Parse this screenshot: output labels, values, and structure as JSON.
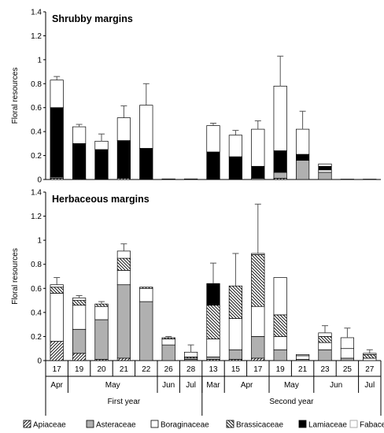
{
  "chart_data": {
    "type": "bar",
    "stacked": true,
    "ylabel": "Floral resources",
    "ylim": [
      0,
      1.4
    ],
    "yticks": [
      0,
      0.2,
      0.4,
      0.6,
      0.8,
      1,
      1.2,
      1.4
    ],
    "series_names": [
      "Apiaceae",
      "Asteraceae",
      "Boraginaceae",
      "Brassicaceae",
      "Lamiaceae",
      "Fabaceae"
    ],
    "colors": {
      "Apiaceae": "#ffffff",
      "Asteraceae": "#b0b0b0",
      "Boraginaceae": "#ffffff",
      "Brassicaceae": "#ffffff",
      "Lamiaceae": "#000000",
      "Fabaceae": "#ffffff"
    },
    "legend": {
      "position": "bottom",
      "entries": [
        {
          "label": "Apiaceae",
          "pattern": "diag-up"
        },
        {
          "label": "Asteraceae",
          "pattern": "gray"
        },
        {
          "label": "Boraginaceae",
          "pattern": "white"
        },
        {
          "label": "Brassicaceae",
          "pattern": "diag-down"
        },
        {
          "label": "Lamiaceae",
          "pattern": "black"
        },
        {
          "label": "Fabaceae",
          "pattern": "white-light"
        }
      ]
    },
    "x_days": [
      "17",
      "19",
      "20",
      "21",
      "22",
      "26",
      "28",
      "13",
      "15",
      "17",
      "19",
      "21",
      "23",
      "25",
      "27"
    ],
    "x_months": [
      {
        "label": "Apr",
        "from": 0,
        "to": 0
      },
      {
        "label": "May",
        "from": 1,
        "to": 4
      },
      {
        "label": "Jun",
        "from": 5,
        "to": 5
      },
      {
        "label": "Jul",
        "from": 6,
        "to": 6
      },
      {
        "label": "Mar",
        "from": 7,
        "to": 7
      },
      {
        "label": "Apr",
        "from": 8,
        "to": 9
      },
      {
        "label": "May",
        "from": 10,
        "to": 11
      },
      {
        "label": "Jun",
        "from": 12,
        "to": 13
      },
      {
        "label": "Jul",
        "from": 14,
        "to": 14
      }
    ],
    "x_years": [
      {
        "label": "First year",
        "from": 0,
        "to": 6
      },
      {
        "label": "Second year",
        "from": 7,
        "to": 14
      }
    ],
    "panels": [
      {
        "title": "Shrubby margins",
        "series": [
          {
            "name": "Apiaceae",
            "values": [
              0.01,
              0.005,
              0,
              0.01,
              0,
              0,
              0,
              0,
              0,
              0,
              0.01,
              0,
              0,
              0,
              0
            ]
          },
          {
            "name": "Asteraceae",
            "values": [
              0.01,
              0.005,
              0,
              0.005,
              0,
              0,
              0,
              0,
              0,
              0.01,
              0.05,
              0.16,
              0.06,
              0,
              0
            ]
          },
          {
            "name": "Boraginaceae",
            "values": [
              0,
              0,
              0,
              0,
              0,
              0,
              0,
              0,
              0,
              0,
              0,
              0,
              0.02,
              0,
              0
            ]
          },
          {
            "name": "Brassicaceae",
            "values": [
              0,
              0,
              0,
              0,
              0,
              0,
              0,
              0,
              0,
              0,
              0,
              0,
              0,
              0,
              0
            ]
          },
          {
            "name": "Lamiaceae",
            "values": [
              0.58,
              0.29,
              0.25,
              0.31,
              0.26,
              0,
              0,
              0.23,
              0.19,
              0.1,
              0.18,
              0.05,
              0.03,
              0,
              0
            ]
          },
          {
            "name": "Fabaceae",
            "values": [
              0.23,
              0.14,
              0.07,
              0.19,
              0.36,
              0.005,
              0.005,
              0.22,
              0.18,
              0.31,
              0.54,
              0.21,
              0.02,
              0.003,
              0.003
            ]
          }
        ],
        "errors": [
          0.03,
          0.02,
          0.06,
          0.1,
          0.18,
          0,
          0,
          0.02,
          0.04,
          0.07,
          0.25,
          0.15,
          0,
          0,
          0
        ]
      },
      {
        "title": "Herbaceous margins",
        "series": [
          {
            "name": "Apiaceae",
            "values": [
              0.16,
              0.06,
              0.01,
              0.02,
              0,
              0,
              0,
              0.01,
              0.01,
              0.02,
              0,
              0,
              0,
              0,
              0
            ]
          },
          {
            "name": "Asteraceae",
            "values": [
              0,
              0.2,
              0.33,
              0.61,
              0.49,
              0.13,
              0.01,
              0.02,
              0.08,
              0.18,
              0.09,
              0.01,
              0.09,
              0.02,
              0
            ]
          },
          {
            "name": "Boraginaceae",
            "values": [
              0.4,
              0.2,
              0.11,
              0.12,
              0.11,
              0.05,
              0.01,
              0.15,
              0.26,
              0.25,
              0.11,
              0.03,
              0.06,
              0.08,
              0.02
            ]
          },
          {
            "name": "Brassicaceae",
            "values": [
              0.05,
              0.04,
              0.02,
              0.1,
              0.01,
              0.01,
              0.01,
              0.28,
              0.27,
              0.43,
              0.18,
              0,
              0.05,
              0,
              0.03
            ]
          },
          {
            "name": "Lamiaceae",
            "values": [
              0,
              0,
              0,
              0,
              0,
              0,
              0,
              0.18,
              0,
              0,
              0,
              0,
              0,
              0,
              0
            ]
          },
          {
            "name": "Fabaceae",
            "values": [
              0.02,
              0.02,
              0,
              0.06,
              0,
              0,
              0.04,
              0,
              0,
              0.01,
              0.31,
              0.01,
              0.03,
              0.09,
              0.01
            ]
          }
        ],
        "errors": [
          0.06,
          0.02,
          0.02,
          0.06,
          0,
          0.01,
          0.06,
          0.17,
          0.27,
          0.41,
          0,
          0,
          0.06,
          0.08,
          0.03
        ]
      }
    ]
  }
}
